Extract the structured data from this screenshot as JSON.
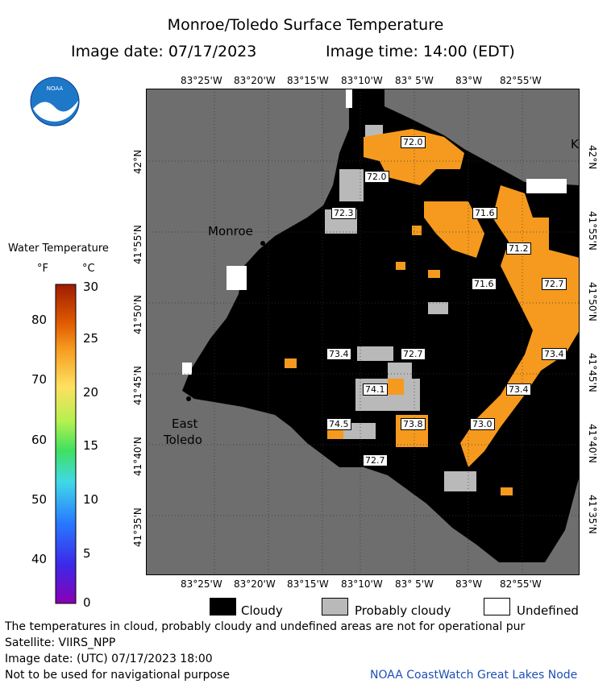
{
  "title": "Monroe/Toledo Surface Temperature",
  "image_date_label": "Image date: 07/17/2023",
  "image_time_label": "Image time: 14:00 (EDT)",
  "logo_text": "NOAA",
  "lon_ticks": [
    "83°25'W",
    "83°20'W",
    "83°15'W",
    "83°10'W",
    "83° 5'W",
    "83°W",
    "82°55'W"
  ],
  "lat_ticks": [
    "42°N",
    "41°55'N",
    "41°50'N",
    "41°45'N",
    "41°40'N",
    "41°35'N"
  ],
  "places": {
    "monroe": "Monroe",
    "east_toledo_1": "East",
    "east_toledo_2": "Toledo",
    "k": "K"
  },
  "temp_labels": [
    "72.0",
    "72.0",
    "72.3",
    "71.6",
    "71.2",
    "71.6",
    "72.7",
    "73.4",
    "72.7",
    "73.4",
    "74.1",
    "73.4",
    "74.5",
    "73.8",
    "73.0",
    "72.7"
  ],
  "legend": {
    "title": "Water Temperature",
    "unit_f": "°F",
    "unit_c": "°C",
    "f_ticks": [
      "80",
      "70",
      "60",
      "50",
      "40"
    ],
    "c_ticks": [
      "30",
      "25",
      "20",
      "15",
      "10",
      "5",
      "0"
    ]
  },
  "key": {
    "cloudy": "Cloudy",
    "probably_cloudy": "Probably cloudy",
    "undefined": "Undefined"
  },
  "footer": {
    "line1": "The temperatures in cloud, probably cloudy and undefined areas are not for operational pur",
    "line2": "Satellite: VIIRS_NPP",
    "line3": "Image date: (UTC) 07/17/2023  18:00",
    "line4": "Not to be used for navigational purpose",
    "credit": "NOAA CoastWatch Great Lakes Node"
  },
  "colors": {
    "land": "#6e6e6e",
    "cloudy": "#000000",
    "probably_cloudy": "#b9b9b9",
    "water_warm": "#f59a1e",
    "undefined": "#ffffff"
  }
}
